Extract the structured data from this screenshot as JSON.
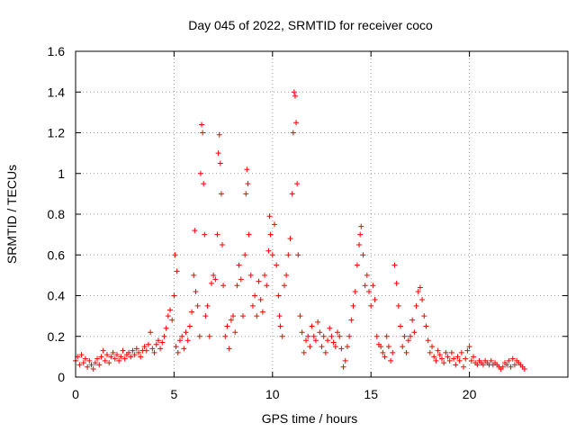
{
  "chart_data": {
    "type": "scatter",
    "title": "Day 045 of 2022, SRMTID for receiver coco",
    "xlabel": "GPS time / hours",
    "ylabel": "SRMTID / TECUs",
    "xlim": [
      0,
      25
    ],
    "ylim": [
      0,
      1.6
    ],
    "x_ticks": [
      0,
      5,
      10,
      15,
      20
    ],
    "x_tick_labels": [
      "0",
      "5",
      "10",
      "15",
      "20"
    ],
    "y_ticks": [
      0,
      0.2,
      0.4,
      0.6,
      0.8,
      1.0,
      1.2,
      1.4,
      1.6
    ],
    "y_tick_labels": [
      "0",
      "0.2",
      "0.4",
      "0.6",
      "0.8",
      "1",
      "1.2",
      "1.4",
      "1.6"
    ],
    "grid": true,
    "marker": "plus",
    "color": "#ff0000",
    "series": [
      {
        "name": "SRMTID",
        "points": [
          [
            0.0,
            0.08
          ],
          [
            0.1,
            0.1
          ],
          [
            0.2,
            0.06
          ],
          [
            0.3,
            0.11
          ],
          [
            0.4,
            0.07
          ],
          [
            0.5,
            0.09
          ],
          [
            0.6,
            0.05
          ],
          [
            0.7,
            0.08
          ],
          [
            0.8,
            0.06
          ],
          [
            0.9,
            0.04
          ],
          [
            1.0,
            0.07
          ],
          [
            1.1,
            0.09
          ],
          [
            1.2,
            0.06
          ],
          [
            1.3,
            0.1
          ],
          [
            1.4,
            0.13
          ],
          [
            1.5,
            0.08
          ],
          [
            1.6,
            0.11
          ],
          [
            1.7,
            0.07
          ],
          [
            1.8,
            0.1
          ],
          [
            1.9,
            0.12
          ],
          [
            2.0,
            0.09
          ],
          [
            2.1,
            0.11
          ],
          [
            2.2,
            0.08
          ],
          [
            2.3,
            0.1
          ],
          [
            2.4,
            0.13
          ],
          [
            2.5,
            0.09
          ],
          [
            2.6,
            0.11
          ],
          [
            2.7,
            0.12
          ],
          [
            2.8,
            0.1
          ],
          [
            2.9,
            0.13
          ],
          [
            3.0,
            0.11
          ],
          [
            3.1,
            0.14
          ],
          [
            3.2,
            0.12
          ],
          [
            3.3,
            0.1
          ],
          [
            3.4,
            0.13
          ],
          [
            3.5,
            0.15
          ],
          [
            3.6,
            0.13
          ],
          [
            3.7,
            0.16
          ],
          [
            3.8,
            0.22
          ],
          [
            3.9,
            0.14
          ],
          [
            4.0,
            0.12
          ],
          [
            4.1,
            0.16
          ],
          [
            4.2,
            0.18
          ],
          [
            4.3,
            0.14
          ],
          [
            4.4,
            0.17
          ],
          [
            4.5,
            0.2
          ],
          [
            4.6,
            0.24
          ],
          [
            4.7,
            0.3
          ],
          [
            4.8,
            0.33
          ],
          [
            4.9,
            0.28
          ],
          [
            5.0,
            0.4
          ],
          [
            5.05,
            0.6
          ],
          [
            5.1,
            0.15
          ],
          [
            5.15,
            0.52
          ],
          [
            5.2,
            0.12
          ],
          [
            5.3,
            0.18
          ],
          [
            5.4,
            0.2
          ],
          [
            5.5,
            0.14
          ],
          [
            5.6,
            0.22
          ],
          [
            5.7,
            0.18
          ],
          [
            5.8,
            0.25
          ],
          [
            5.9,
            0.32
          ],
          [
            6.0,
            0.5
          ],
          [
            6.05,
            0.72
          ],
          [
            6.1,
            0.42
          ],
          [
            6.2,
            0.35
          ],
          [
            6.3,
            0.2
          ],
          [
            6.35,
            1.0
          ],
          [
            6.4,
            1.24
          ],
          [
            6.45,
            1.2
          ],
          [
            6.5,
            0.95
          ],
          [
            6.55,
            0.7
          ],
          [
            6.6,
            0.3
          ],
          [
            6.7,
            0.35
          ],
          [
            6.8,
            0.2
          ],
          [
            6.9,
            0.46
          ],
          [
            7.0,
            0.5
          ],
          [
            7.1,
            0.48
          ],
          [
            7.2,
            0.7
          ],
          [
            7.25,
            1.1
          ],
          [
            7.3,
            1.19
          ],
          [
            7.35,
            1.05
          ],
          [
            7.4,
            0.9
          ],
          [
            7.45,
            0.65
          ],
          [
            7.5,
            0.45
          ],
          [
            7.6,
            0.2
          ],
          [
            7.7,
            0.25
          ],
          [
            7.8,
            0.14
          ],
          [
            7.9,
            0.28
          ],
          [
            8.0,
            0.3
          ],
          [
            8.1,
            0.22
          ],
          [
            8.2,
            0.45
          ],
          [
            8.3,
            0.55
          ],
          [
            8.4,
            0.48
          ],
          [
            8.5,
            0.3
          ],
          [
            8.6,
            0.6
          ],
          [
            8.65,
            0.9
          ],
          [
            8.7,
            1.02
          ],
          [
            8.75,
            0.95
          ],
          [
            8.8,
            0.7
          ],
          [
            8.9,
            0.5
          ],
          [
            9.0,
            0.35
          ],
          [
            9.1,
            0.4
          ],
          [
            9.2,
            0.3
          ],
          [
            9.3,
            0.47
          ],
          [
            9.4,
            0.38
          ],
          [
            9.5,
            0.32
          ],
          [
            9.6,
            0.5
          ],
          [
            9.7,
            0.45
          ],
          [
            9.8,
            0.62
          ],
          [
            9.85,
            0.79
          ],
          [
            9.9,
            0.7
          ],
          [
            10.0,
            0.6
          ],
          [
            10.1,
            0.75
          ],
          [
            10.2,
            0.55
          ],
          [
            10.3,
            0.4
          ],
          [
            10.35,
            0.3
          ],
          [
            10.4,
            0.25
          ],
          [
            10.5,
            0.2
          ],
          [
            10.6,
            0.45
          ],
          [
            10.7,
            0.5
          ],
          [
            10.8,
            0.6
          ],
          [
            10.9,
            0.68
          ],
          [
            11.0,
            0.9
          ],
          [
            11.05,
            1.2
          ],
          [
            11.1,
            1.4
          ],
          [
            11.15,
            1.38
          ],
          [
            11.2,
            1.25
          ],
          [
            11.25,
            0.95
          ],
          [
            11.3,
            0.6
          ],
          [
            11.4,
            0.3
          ],
          [
            11.5,
            0.22
          ],
          [
            11.6,
            0.12
          ],
          [
            11.7,
            0.18
          ],
          [
            11.8,
            0.2
          ],
          [
            11.9,
            0.15
          ],
          [
            12.0,
            0.25
          ],
          [
            12.1,
            0.2
          ],
          [
            12.2,
            0.18
          ],
          [
            12.3,
            0.27
          ],
          [
            12.4,
            0.22
          ],
          [
            12.5,
            0.15
          ],
          [
            12.6,
            0.2
          ],
          [
            12.7,
            0.12
          ],
          [
            12.8,
            0.18
          ],
          [
            12.9,
            0.24
          ],
          [
            13.0,
            0.2
          ],
          [
            13.1,
            0.17
          ],
          [
            13.2,
            0.15
          ],
          [
            13.3,
            0.22
          ],
          [
            13.4,
            0.2
          ],
          [
            13.5,
            0.14
          ],
          [
            13.6,
            0.05
          ],
          [
            13.7,
            0.08
          ],
          [
            13.8,
            0.15
          ],
          [
            13.9,
            0.2
          ],
          [
            14.0,
            0.28
          ],
          [
            14.1,
            0.35
          ],
          [
            14.2,
            0.42
          ],
          [
            14.3,
            0.55
          ],
          [
            14.4,
            0.65
          ],
          [
            14.45,
            0.7
          ],
          [
            14.5,
            0.74
          ],
          [
            14.6,
            0.6
          ],
          [
            14.7,
            0.45
          ],
          [
            14.8,
            0.5
          ],
          [
            14.9,
            0.42
          ],
          [
            15.0,
            0.35
          ],
          [
            15.1,
            0.45
          ],
          [
            15.2,
            0.38
          ],
          [
            15.3,
            0.2
          ],
          [
            15.4,
            0.16
          ],
          [
            15.5,
            0.15
          ],
          [
            15.6,
            0.12
          ],
          [
            15.7,
            0.1
          ],
          [
            15.8,
            0.2
          ],
          [
            15.9,
            0.15
          ],
          [
            16.0,
            0.08
          ],
          [
            16.1,
            0.12
          ],
          [
            16.2,
            0.55
          ],
          [
            16.3,
            0.46
          ],
          [
            16.4,
            0.35
          ],
          [
            16.5,
            0.25
          ],
          [
            16.6,
            0.15
          ],
          [
            16.7,
            0.2
          ],
          [
            16.8,
            0.12
          ],
          [
            16.9,
            0.18
          ],
          [
            17.0,
            0.2
          ],
          [
            17.1,
            0.28
          ],
          [
            17.2,
            0.22
          ],
          [
            17.3,
            0.35
          ],
          [
            17.4,
            0.42
          ],
          [
            17.5,
            0.44
          ],
          [
            17.6,
            0.38
          ],
          [
            17.7,
            0.3
          ],
          [
            17.8,
            0.25
          ],
          [
            17.9,
            0.18
          ],
          [
            18.0,
            0.12
          ],
          [
            18.1,
            0.15
          ],
          [
            18.2,
            0.1
          ],
          [
            18.3,
            0.08
          ],
          [
            18.4,
            0.13
          ],
          [
            18.5,
            0.11
          ],
          [
            18.6,
            0.09
          ],
          [
            18.7,
            0.07
          ],
          [
            18.8,
            0.12
          ],
          [
            18.9,
            0.1
          ],
          [
            19.0,
            0.08
          ],
          [
            19.1,
            0.12
          ],
          [
            19.2,
            0.09
          ],
          [
            19.3,
            0.06
          ],
          [
            19.4,
            0.1
          ],
          [
            19.5,
            0.08
          ],
          [
            19.6,
            0.12
          ],
          [
            19.7,
            0.05
          ],
          [
            19.8,
            0.09
          ],
          [
            19.9,
            0.13
          ],
          [
            20.0,
            0.15
          ],
          [
            20.1,
            0.08
          ],
          [
            20.2,
            0.1
          ],
          [
            20.3,
            0.07
          ],
          [
            20.4,
            0.06
          ],
          [
            20.5,
            0.08
          ],
          [
            20.6,
            0.07
          ],
          [
            20.7,
            0.06
          ],
          [
            20.8,
            0.08
          ],
          [
            20.9,
            0.07
          ],
          [
            21.0,
            0.06
          ],
          [
            21.1,
            0.08
          ],
          [
            21.2,
            0.06
          ],
          [
            21.3,
            0.07
          ],
          [
            21.4,
            0.06
          ],
          [
            21.5,
            0.05
          ],
          [
            21.6,
            0.04
          ],
          [
            21.7,
            0.05
          ],
          [
            21.8,
            0.07
          ],
          [
            21.9,
            0.06
          ],
          [
            22.0,
            0.08
          ],
          [
            22.1,
            0.05
          ],
          [
            22.2,
            0.09
          ],
          [
            22.3,
            0.06
          ],
          [
            22.4,
            0.08
          ],
          [
            22.5,
            0.07
          ],
          [
            22.6,
            0.06
          ],
          [
            22.7,
            0.05
          ],
          [
            22.8,
            0.04
          ]
        ]
      }
    ]
  }
}
